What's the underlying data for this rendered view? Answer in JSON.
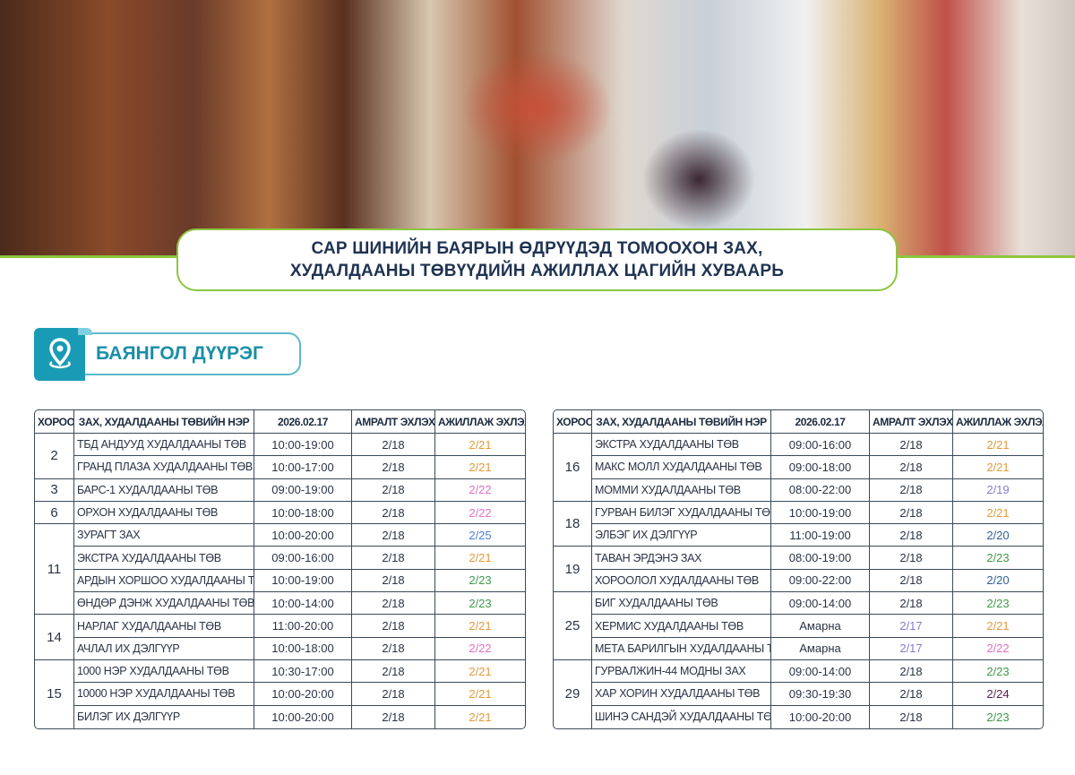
{
  "title": {
    "line1": "САР ШИНИЙН БАЯРЫН ӨДРҮҮДЭД ТОМООХОН ЗАХ,",
    "line2": "ХУДАЛДААНЫ ТӨВҮҮДИЙН АЖИЛЛАХ ЦАГИЙН ХУВААРЬ"
  },
  "district": {
    "name": "БАЯНГОЛ ДҮҮРЭГ",
    "icon": "location-pin-icon",
    "color": "#1a9bb5"
  },
  "accent_colors": {
    "border": "#8cc63f",
    "district": "#1a9bb5"
  },
  "columns": [
    "ХОРОО",
    "ЗАХ, ХУДАЛДААНЫ ТӨВИЙН НЭР",
    "2026.02.17",
    "АМРАЛТ ЭХЛЭХ",
    "АЖИЛЛАЖ ЭХЛЭХ"
  ],
  "date_colors": {
    "2/17": "#8a78d0",
    "2/19": "#8a78d0",
    "2/20": "#2d5f9e",
    "2/21": "#e39a3a",
    "2/22": "#e070c0",
    "2/23": "#3d9a4a",
    "2/24": "#5a1f4f",
    "2/25": "#4a7fd8"
  },
  "tables": [
    {
      "groups": [
        {
          "khoroo": "2",
          "rows": [
            [
              "ТБД АНДУУД ХУДАЛДААНЫ ТӨВ",
              "10:00-19:00",
              "2/18",
              "2/21"
            ],
            [
              "ГРАНД ПЛАЗА ХУДАЛДААНЫ ТӨВ",
              "10:00-17:00",
              "2/18",
              "2/21"
            ]
          ]
        },
        {
          "khoroo": "3",
          "rows": [
            [
              "БАРС-1 ХУДАЛДААНЫ ТӨВ",
              "09:00-19:00",
              "2/18",
              "2/22"
            ]
          ]
        },
        {
          "khoroo": "6",
          "rows": [
            [
              "ОРХОН ХУДАЛДААНЫ ТӨВ",
              "10:00-18:00",
              "2/18",
              "2/22"
            ]
          ]
        },
        {
          "khoroo": "11",
          "rows": [
            [
              "ЗУРАГТ ЗАХ",
              "10:00-20:00",
              "2/18",
              "2/25"
            ],
            [
              "ЭКСТРА ХУДАЛДААНЫ ТӨВ",
              "09:00-16:00",
              "2/18",
              "2/21"
            ],
            [
              "АРДЫН ХОРШОО ХУДАЛДААНЫ ТӨВ",
              "10:00-19:00",
              "2/18",
              "2/23"
            ],
            [
              "ӨНДӨР ДЭНЖ ХУДАЛДААНЫ ТӨВ",
              "10:00-14:00",
              "2/18",
              "2/23"
            ]
          ]
        },
        {
          "khoroo": "14",
          "rows": [
            [
              "НАРЛАГ ХУДАЛДААНЫ ТӨВ",
              "11:00-20:00",
              "2/18",
              "2/21"
            ],
            [
              "АЧЛАЛ ИХ ДЭЛГҮҮР",
              "10:00-18:00",
              "2/18",
              "2/22"
            ]
          ]
        },
        {
          "khoroo": "15",
          "rows": [
            [
              "1000 НЭР ХУДАЛДААНЫ ТӨВ",
              "10:30-17:00",
              "2/18",
              "2/21"
            ],
            [
              "10000 НЭР ХУДАЛДААНЫ ТӨВ",
              "10:00-20:00",
              "2/18",
              "2/21"
            ],
            [
              "БИЛЭГ ИХ ДЭЛГҮҮР",
              "10:00-20:00",
              "2/18",
              "2/21"
            ]
          ]
        }
      ]
    },
    {
      "groups": [
        {
          "khoroo": "16",
          "rows": [
            [
              "ЭКСТРА ХУДАЛДААНЫ ТӨВ",
              "09:00-16:00",
              "2/18",
              "2/21"
            ],
            [
              "МАКС МОЛЛ ХУДАЛДААНЫ ТӨВ",
              "09:00-18:00",
              "2/18",
              "2/21"
            ],
            [
              "МОММИ ХУДАЛДААНЫ ТӨВ",
              "08:00-22:00",
              "2/18",
              "2/19"
            ]
          ]
        },
        {
          "khoroo": "18",
          "rows": [
            [
              "ГУРВАН БИЛЭГ ХУДАЛДААНЫ ТӨВ",
              "10:00-19:00",
              "2/18",
              "2/21"
            ],
            [
              "ЭЛБЭГ ИХ ДЭЛГҮҮР",
              "11:00-19:00",
              "2/18",
              "2/20"
            ]
          ]
        },
        {
          "khoroo": "19",
          "rows": [
            [
              "ТАВАН ЭРДЭНЭ ЗАХ",
              "08:00-19:00",
              "2/18",
              "2/23"
            ],
            [
              "ХОРООЛОЛ ХУДАЛДААНЫ ТӨВ",
              "09:00-22:00",
              "2/18",
              "2/20"
            ]
          ]
        },
        {
          "khoroo": "25",
          "rows": [
            [
              "БИГ ХУДАЛДААНЫ ТӨВ",
              "09:00-14:00",
              "2/18",
              "2/23"
            ],
            [
              "ХЕРМИС ХУДАЛДААНЫ ТӨВ",
              "Амарна",
              "2/17",
              "2/21"
            ],
            [
              "МЕТА БАРИЛГЫН ХУДАЛДААНЫ ТӨВ",
              "Амарна",
              "2/17",
              "2/22"
            ]
          ]
        },
        {
          "khoroo": "29",
          "rows": [
            [
              "ГУРВАЛЖИН-44 МОДНЫ ЗАХ",
              "09:00-14:00",
              "2/18",
              "2/23"
            ],
            [
              "ХАР ХОРИН ХУДАЛДААНЫ ТӨВ",
              "09:30-19:30",
              "2/18",
              "2/24"
            ],
            [
              "ШИНЭ САНДЭЙ ХУДАЛДААНЫ ТӨВ",
              "10:00-20:00",
              "2/18",
              "2/23"
            ]
          ]
        }
      ]
    }
  ]
}
